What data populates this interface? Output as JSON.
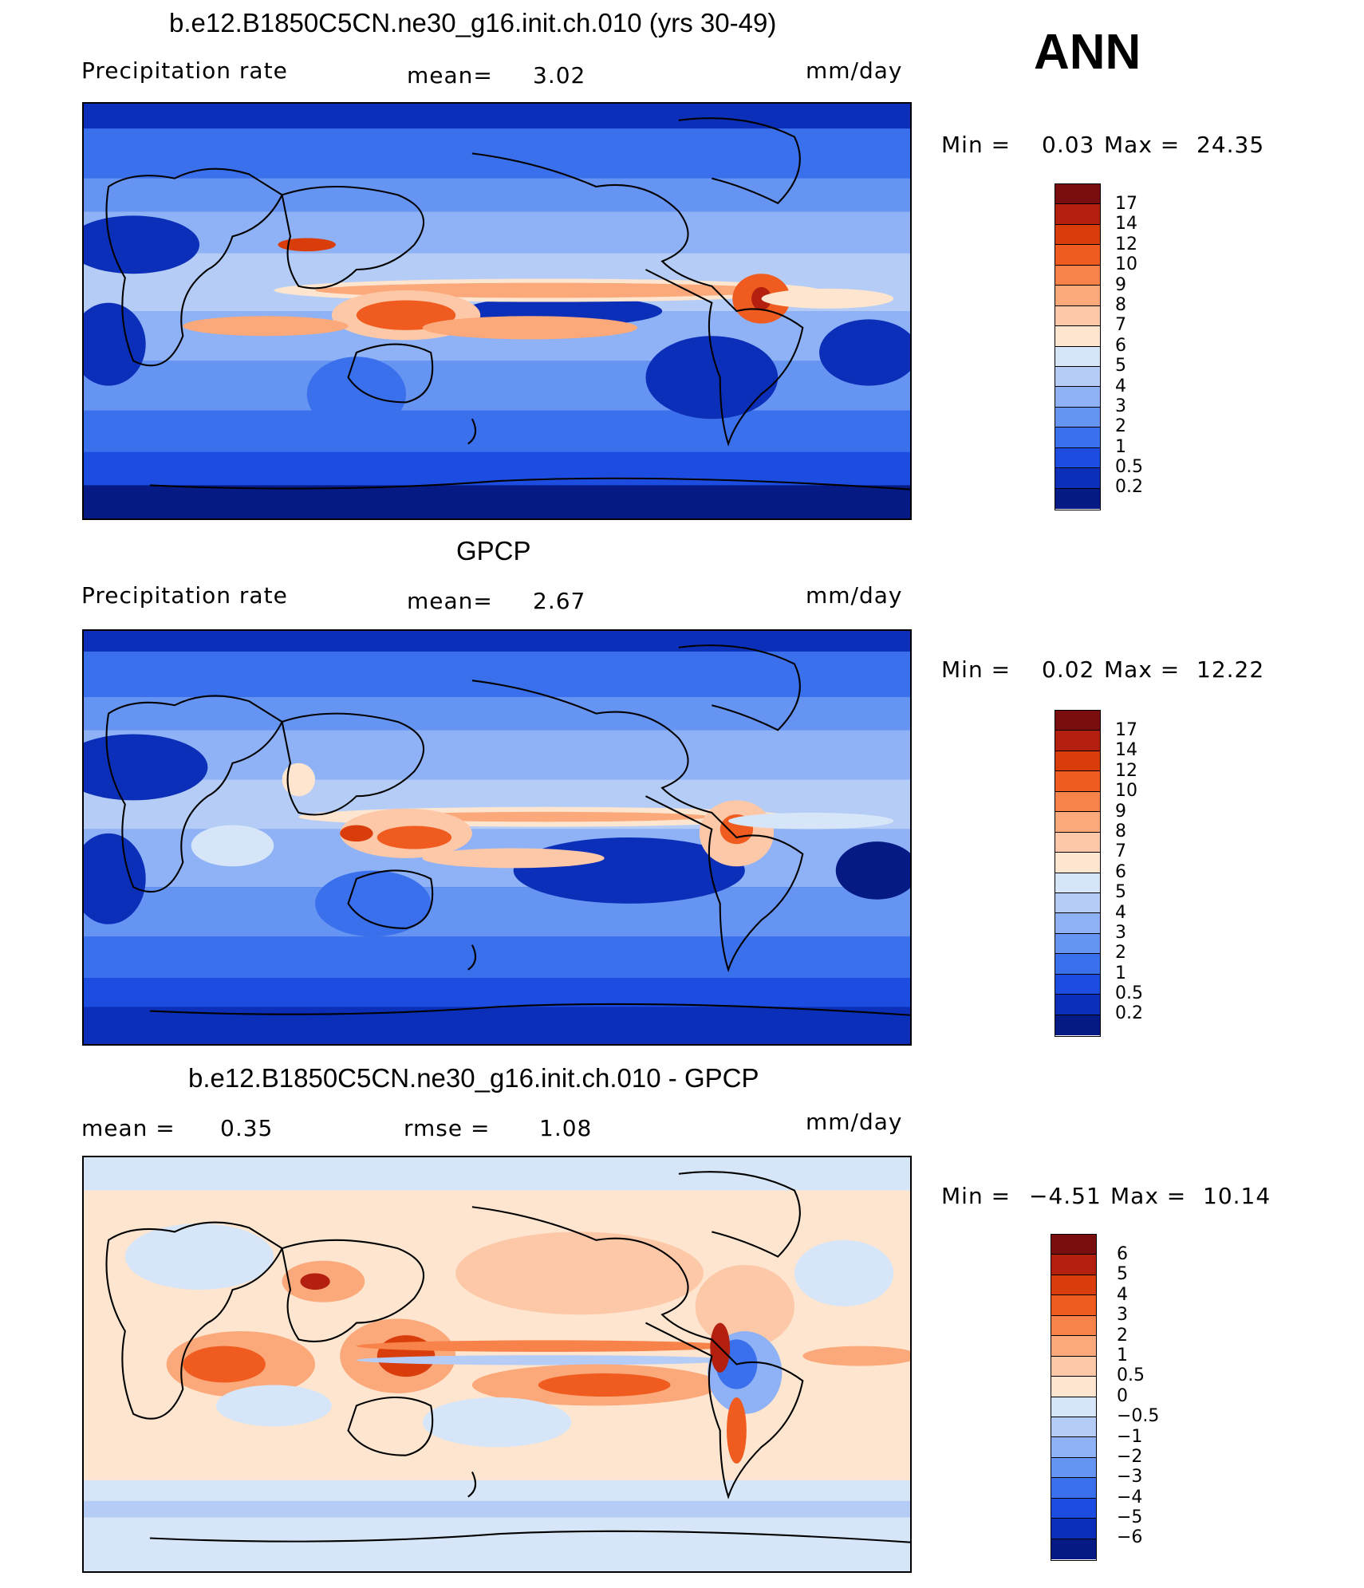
{
  "season": "ANN",
  "panels": [
    {
      "id": "model",
      "title": "b.e12.B1850C5CN.ne30_g16.init.ch.010 (yrs 30-49)",
      "variable": "Precipitation rate",
      "stat1_label": "mean=",
      "stat1_value": "3.02",
      "units": "mm/day",
      "min_label": "Min =",
      "min_value": "0.03",
      "max_label": "Max =",
      "max_value": "24.35"
    },
    {
      "id": "obs",
      "title": "GPCP",
      "variable": "Precipitation rate",
      "stat1_label": "mean=",
      "stat1_value": "2.67",
      "units": "mm/day",
      "min_label": "Min =",
      "min_value": "0.02",
      "max_label": "Max =",
      "max_value": "12.22"
    },
    {
      "id": "diff",
      "title": "b.e12.B1850C5CN.ne30_g16.init.ch.010 - GPCP",
      "stat1_label": "mean =",
      "stat1_value": "0.35",
      "stat2_label": "rmse =",
      "stat2_value": "1.08",
      "units": "mm/day",
      "min_label": "Min =",
      "min_value": "−4.51",
      "max_label": "Max =",
      "max_value": "10.14"
    }
  ],
  "colorbars": {
    "precip": {
      "labels": [
        "17",
        "14",
        "12",
        "10",
        "9",
        "8",
        "7",
        "6",
        "5",
        "4",
        "3",
        "2",
        "1",
        "0.5",
        "0.2"
      ],
      "colors": [
        "#7a0d0d",
        "#b3200f",
        "#d93d0c",
        "#f05c20",
        "#f8834a",
        "#fba87a",
        "#fdc8a8",
        "#fde5cf",
        "#d6e6f8",
        "#b5cdf6",
        "#8eb2f5",
        "#6694f2",
        "#3a70ec",
        "#1d4de0",
        "#0b2fb8",
        "#061a86"
      ]
    },
    "diff": {
      "labels": [
        "6",
        "5",
        "4",
        "3",
        "2",
        "1",
        "0.5",
        "0",
        "−0.5",
        "−1",
        "−2",
        "−3",
        "−4",
        "−5",
        "−6"
      ],
      "colors": [
        "#7a0d0d",
        "#b3200f",
        "#d93d0c",
        "#f05c20",
        "#f8834a",
        "#fba87a",
        "#fdc8a8",
        "#fde5cf",
        "#d6e6f8",
        "#b5cdf6",
        "#8eb2f5",
        "#6694f2",
        "#3a70ec",
        "#1d4de0",
        "#0b2fb8",
        "#061a86"
      ]
    }
  },
  "colors": {
    "wet_extreme": "#b3200f",
    "dry_extreme": "#061a86",
    "neutral_pos": "#fde5cf",
    "neutral_neg": "#d6e6f8"
  }
}
